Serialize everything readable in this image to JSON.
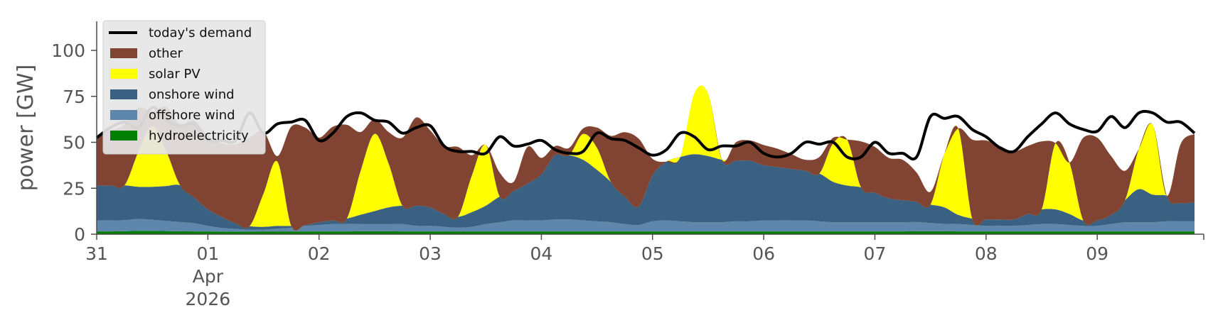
{
  "chart_data": {
    "type": "area",
    "title": "",
    "xlabel": "",
    "ylabel": "power [GW]",
    "ylim": [
      0,
      120
    ],
    "yticks": [
      "0",
      "25",
      "50",
      "75",
      "100"
    ],
    "xlim": [
      "2026-03-31",
      "2026-04-09 23:00"
    ],
    "xticks": [
      {
        "date": "2026-03-31",
        "label": "31"
      },
      {
        "date": "2026-04-01",
        "label": "01",
        "sublabels": [
          "Apr",
          "2026"
        ]
      },
      {
        "date": "2026-04-02",
        "label": "02"
      },
      {
        "date": "2026-04-03",
        "label": "03"
      },
      {
        "date": "2026-04-04",
        "label": "04"
      },
      {
        "date": "2026-04-05",
        "label": "05"
      },
      {
        "date": "2026-04-06",
        "label": "06"
      },
      {
        "date": "2026-04-07",
        "label": "07"
      },
      {
        "date": "2026-04-08",
        "label": "08"
      },
      {
        "date": "2026-04-09",
        "label": "09"
      }
    ],
    "grid": false,
    "legend": "top-left",
    "x": [
      "2026-03-31 00:00",
      "2026-03-31 03:00",
      "2026-03-31 06:00",
      "2026-03-31 09:00",
      "2026-03-31 12:00",
      "2026-03-31 15:00",
      "2026-03-31 18:00",
      "2026-03-31 21:00",
      "2026-04-01 00:00",
      "2026-04-01 03:00",
      "2026-04-01 06:00",
      "2026-04-01 09:00",
      "2026-04-01 12:00",
      "2026-04-01 15:00",
      "2026-04-01 18:00",
      "2026-04-01 21:00",
      "2026-04-02 00:00",
      "2026-04-02 03:00",
      "2026-04-02 06:00",
      "2026-04-02 09:00",
      "2026-04-02 12:00",
      "2026-04-02 15:00",
      "2026-04-02 18:00",
      "2026-04-02 21:00",
      "2026-04-03 00:00",
      "2026-04-03 03:00",
      "2026-04-03 06:00",
      "2026-04-03 09:00",
      "2026-04-03 12:00",
      "2026-04-03 15:00",
      "2026-04-03 18:00",
      "2026-04-03 21:00",
      "2026-04-04 00:00",
      "2026-04-04 03:00",
      "2026-04-04 06:00",
      "2026-04-04 09:00",
      "2026-04-04 12:00",
      "2026-04-04 15:00",
      "2026-04-04 18:00",
      "2026-04-04 21:00",
      "2026-04-05 00:00",
      "2026-04-05 03:00",
      "2026-04-05 06:00",
      "2026-04-05 09:00",
      "2026-04-05 12:00",
      "2026-04-05 15:00",
      "2026-04-05 18:00",
      "2026-04-05 21:00",
      "2026-04-06 00:00",
      "2026-04-06 03:00",
      "2026-04-06 06:00",
      "2026-04-06 09:00",
      "2026-04-06 12:00",
      "2026-04-06 15:00",
      "2026-04-06 18:00",
      "2026-04-06 21:00",
      "2026-04-07 00:00",
      "2026-04-07 03:00",
      "2026-04-07 06:00",
      "2026-04-07 09:00",
      "2026-04-07 12:00",
      "2026-04-07 15:00",
      "2026-04-07 18:00",
      "2026-04-07 21:00",
      "2026-04-08 00:00",
      "2026-04-08 03:00",
      "2026-04-08 06:00",
      "2026-04-08 09:00",
      "2026-04-08 12:00",
      "2026-04-08 15:00",
      "2026-04-08 18:00",
      "2026-04-08 21:00",
      "2026-04-09 00:00",
      "2026-04-09 03:00",
      "2026-04-09 06:00",
      "2026-04-09 09:00",
      "2026-04-09 12:00",
      "2026-04-09 15:00",
      "2026-04-09 18:00",
      "2026-04-09 21:00"
    ],
    "series": [
      {
        "name": "hydroelectricity",
        "kind": "area",
        "color": "#008000",
        "values": [
          1.5,
          1.5,
          1.6,
          1.8,
          1.8,
          1.7,
          1.6,
          1.5,
          1.5,
          1.4,
          1.4,
          1.4,
          1.5,
          1.5,
          1.5,
          1.5,
          1.5,
          1.5,
          1.5,
          1.6,
          1.6,
          1.6,
          1.5,
          1.5,
          1.5,
          1.5,
          1.5,
          1.5,
          1.5,
          1.5,
          1.5,
          1.5,
          1.5,
          1.5,
          1.5,
          1.5,
          1.5,
          1.5,
          1.5,
          1.5,
          1.5,
          1.5,
          1.5,
          1.5,
          1.5,
          1.5,
          1.5,
          1.5,
          1.5,
          1.5,
          1.5,
          1.5,
          1.5,
          1.5,
          1.5,
          1.5,
          1.5,
          1.5,
          1.5,
          1.6,
          1.6,
          1.6,
          1.5,
          1.5,
          1.5,
          1.5,
          1.5,
          1.5,
          1.5,
          1.5,
          1.5,
          1.5,
          1.5,
          1.5,
          1.5,
          1.5,
          1.5,
          1.5,
          1.5,
          1.5
        ]
      },
      {
        "name": "offshore wind",
        "kind": "area",
        "color": "#5f87ab",
        "values": [
          6,
          6,
          6,
          6.5,
          6,
          5.5,
          5,
          4.5,
          3,
          2,
          1.5,
          1,
          1,
          1.5,
          2,
          3,
          3.5,
          4,
          4,
          4,
          4,
          4,
          4,
          3,
          3,
          2.5,
          2,
          2.5,
          4,
          5,
          6,
          6,
          6,
          6.5,
          6.5,
          6,
          5.5,
          5,
          4,
          3.5,
          5.5,
          6,
          5.5,
          5,
          5,
          5,
          5.5,
          5.5,
          6,
          6,
          6,
          6,
          5.5,
          5,
          5,
          5,
          5,
          5,
          5,
          5,
          4.5,
          4,
          4,
          3.5,
          3,
          3,
          3,
          3.5,
          4,
          4,
          3.5,
          3,
          3,
          4,
          5,
          5,
          5,
          5.5,
          5.5,
          5.5
        ]
      },
      {
        "name": "onshore wind",
        "kind": "area",
        "color": "#3b6182",
        "values": [
          19,
          19,
          19,
          17.5,
          18,
          19,
          20,
          14,
          9,
          6,
          3,
          2,
          1.5,
          1.5,
          1,
          0.5,
          1.5,
          2,
          3,
          5,
          7,
          9,
          10,
          11,
          10,
          7,
          6,
          8,
          10,
          14,
          16,
          20,
          25,
          35,
          35,
          33,
          28,
          22,
          15,
          10,
          25,
          32,
          35,
          37,
          36,
          34,
          33,
          33,
          30,
          29,
          28,
          27,
          26,
          22,
          20,
          19,
          16,
          13,
          12,
          11,
          10,
          9,
          5,
          3.5,
          3.5,
          3.5,
          3.5,
          6,
          8,
          8,
          6,
          3,
          3,
          5,
          12,
          18,
          15,
          14,
          10,
          10.5
        ]
      },
      {
        "name": "solar PV",
        "kind": "area",
        "color": "#ffff00",
        "values": [
          0,
          0,
          0,
          19,
          33,
          19,
          0,
          0,
          0,
          0,
          0,
          0,
          18,
          35,
          0,
          0,
          0,
          0,
          0,
          24,
          42,
          24,
          0,
          0,
          0,
          0,
          0,
          20,
          33,
          0,
          0,
          0,
          0,
          0,
          0,
          14,
          12,
          0,
          0,
          0,
          0,
          0,
          0,
          33,
          34,
          0,
          0,
          0,
          0,
          0,
          0,
          0,
          0,
          21,
          25,
          0,
          0,
          0,
          0,
          0,
          0,
          29,
          47,
          0,
          0,
          0,
          0,
          0,
          0,
          36,
          28,
          0,
          0,
          0,
          0,
          22,
          38,
          0,
          0,
          0
        ]
      },
      {
        "name": "other",
        "kind": "area",
        "color": "#824432",
        "values": [
          26,
          30,
          33,
          24,
          8,
          24,
          33,
          42,
          40,
          40,
          43,
          48,
          34,
          3,
          54,
          53,
          46,
          51,
          51,
          21,
          8,
          17,
          37,
          48,
          42,
          37,
          38,
          11,
          0,
          13,
          5,
          20,
          9,
          5,
          4,
          3,
          11,
          25,
          35,
          37,
          9,
          0,
          0,
          0,
          0,
          0,
          10,
          11,
          11,
          10,
          8,
          6,
          9,
          3,
          0,
          25,
          25,
          22,
          22,
          16,
          7,
          0,
          0,
          43,
          43,
          40,
          37,
          37,
          37,
          0,
          0,
          45,
          45,
          32,
          16,
          0,
          0,
          0,
          32,
          37
        ]
      },
      {
        "name": "today's demand",
        "kind": "line",
        "color": "#000000",
        "values": [
          52.5,
          58,
          61,
          58,
          69,
          62,
          59,
          60,
          51,
          51,
          51,
          66,
          55,
          60,
          61,
          62,
          51,
          55,
          64,
          66,
          62,
          61,
          55,
          58,
          59,
          48,
          45,
          45,
          44,
          53,
          48,
          49,
          51,
          46,
          44,
          45,
          55,
          52,
          51,
          47,
          43,
          46,
          55,
          53,
          46,
          48,
          48,
          50,
          44,
          42,
          44,
          50,
          49,
          50,
          42,
          42,
          50,
          44,
          44,
          42,
          64,
          63,
          64,
          57,
          53,
          47,
          45,
          53,
          60,
          66,
          60,
          57,
          56,
          64,
          58,
          66,
          66,
          61,
          61,
          55
        ]
      }
    ]
  },
  "colors": {
    "plot_background": "#ffffff",
    "legend_background": "#e6e6e6",
    "axis_line": "#4d4d4d",
    "text": "#555555"
  }
}
